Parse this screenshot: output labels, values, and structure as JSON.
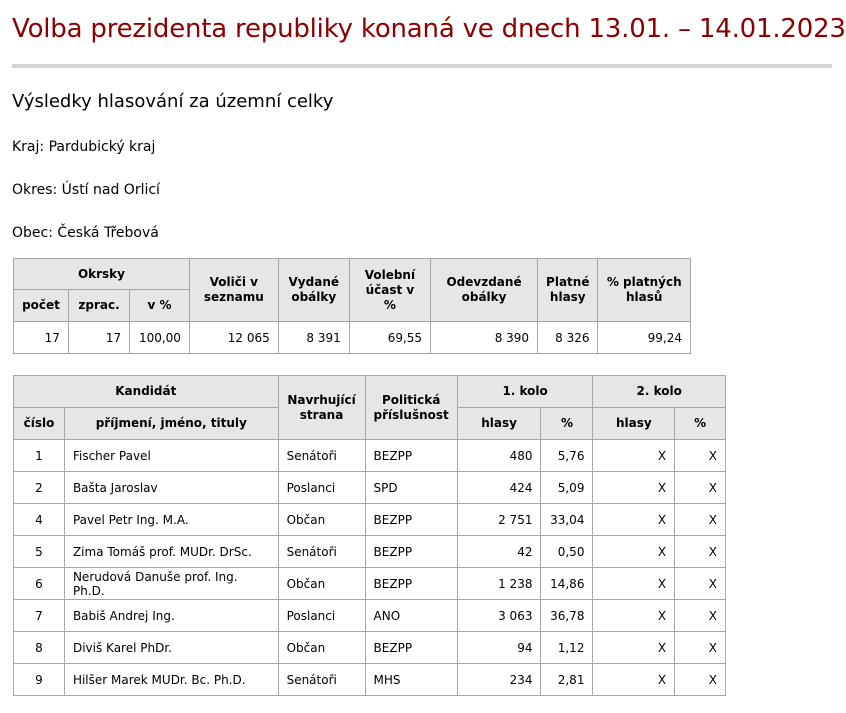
{
  "header": {
    "title": "Volba prezidenta republiky konaná ve dnech 13.01. – 14.01.2023",
    "subtitle": "Výsledky hlasování za územní celky",
    "kraj": "Kraj: Pardubický kraj",
    "okres": "Okres: Ústí nad Orlicí",
    "obec": "Obec: Česká Třebová"
  },
  "summary": {
    "group_header": "Okrsky",
    "headers": {
      "pocet": "počet",
      "zprac": "zprac.",
      "v_pct": "v %",
      "volici": "Voliči v seznamu",
      "vydane": "Vydané obálky",
      "ucast": "Volební účast v %",
      "odevzdane": "Odevzdané obálky",
      "platne": "Platné hlasy",
      "pct_platnych": "% platných hlasů"
    },
    "values": {
      "pocet": "17",
      "zprac": "17",
      "v_pct": "100,00",
      "volici": "12 065",
      "vydane": "8 391",
      "ucast": "69,55",
      "odevzdane": "8 390",
      "platne": "8 326",
      "pct_platnych": "99,24"
    }
  },
  "candidates": {
    "headers": {
      "kandidat": "Kandidát",
      "navrhujici": "Navrhující strana",
      "prislusnost": "Politická příslušnost",
      "kolo1": "1. kolo",
      "kolo2": "2. kolo",
      "cislo": "číslo",
      "jmeno": "příjmení, jméno, tituly",
      "hlasy1": "hlasy",
      "pct1": "%",
      "hlasy2": "hlasy",
      "pct2": "%"
    },
    "rows": [
      {
        "cislo": "1",
        "jmeno": "Fischer Pavel",
        "strana": "Senátoři",
        "prislusnost": "BEZPP",
        "hlasy1": "480",
        "pct1": "5,76",
        "hlasy2": "X",
        "pct2": "X"
      },
      {
        "cislo": "2",
        "jmeno": "Bašta Jaroslav",
        "strana": "Poslanci",
        "prislusnost": "SPD",
        "hlasy1": "424",
        "pct1": "5,09",
        "hlasy2": "X",
        "pct2": "X"
      },
      {
        "cislo": "4",
        "jmeno": "Pavel Petr Ing. M.A.",
        "strana": "Občan",
        "prislusnost": "BEZPP",
        "hlasy1": "2 751",
        "pct1": "33,04",
        "hlasy2": "X",
        "pct2": "X"
      },
      {
        "cislo": "5",
        "jmeno": "Zima Tomáš prof. MUDr. DrSc.",
        "strana": "Senátoři",
        "prislusnost": "BEZPP",
        "hlasy1": "42",
        "pct1": "0,50",
        "hlasy2": "X",
        "pct2": "X"
      },
      {
        "cislo": "6",
        "jmeno": "Nerudová Danuše prof. Ing. Ph.D.",
        "strana": "Občan",
        "prislusnost": "BEZPP",
        "hlasy1": "1 238",
        "pct1": "14,86",
        "hlasy2": "X",
        "pct2": "X"
      },
      {
        "cislo": "7",
        "jmeno": "Babiš Andrej Ing.",
        "strana": "Poslanci",
        "prislusnost": "ANO",
        "hlasy1": "3 063",
        "pct1": "36,78",
        "hlasy2": "X",
        "pct2": "X"
      },
      {
        "cislo": "8",
        "jmeno": "Diviš Karel PhDr.",
        "strana": "Občan",
        "prislusnost": "BEZPP",
        "hlasy1": "94",
        "pct1": "1,12",
        "hlasy2": "X",
        "pct2": "X"
      },
      {
        "cislo": "9",
        "jmeno": "Hilšer Marek MUDr. Bc. Ph.D.",
        "strana": "Senátoři",
        "prislusnost": "MHS",
        "hlasy1": "234",
        "pct1": "2,81",
        "hlasy2": "X",
        "pct2": "X"
      }
    ]
  }
}
